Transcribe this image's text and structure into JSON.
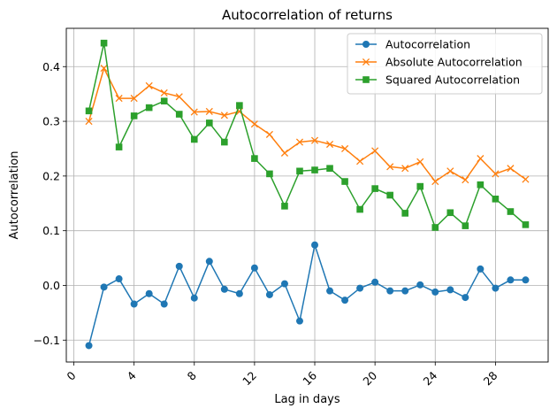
{
  "chart_data": {
    "type": "line",
    "title": "Autocorrelation of returns",
    "xlabel": "Lag in days",
    "ylabel": "Autocorrelation",
    "x": [
      1,
      2,
      3,
      4,
      5,
      6,
      7,
      8,
      9,
      10,
      11,
      12,
      13,
      14,
      15,
      16,
      17,
      18,
      19,
      20,
      21,
      22,
      23,
      24,
      25,
      26,
      27,
      28,
      29,
      30
    ],
    "xlim": [
      -0.5,
      31.5
    ],
    "ylim": [
      -0.14,
      0.47
    ],
    "xticks": [
      0,
      4,
      8,
      12,
      16,
      20,
      24,
      28
    ],
    "xtick_labels": [
      "0",
      "4",
      "8",
      "12",
      "16",
      "20",
      "24",
      "28"
    ],
    "yticks": [
      -0.1,
      0.0,
      0.1,
      0.2,
      0.3,
      0.4
    ],
    "ytick_labels": [
      "−0.1",
      "0.0",
      "0.1",
      "0.2",
      "0.3",
      "0.4"
    ],
    "grid": true,
    "legend_position": "top-right",
    "series": [
      {
        "name": "Autocorrelation",
        "color": "#1f77b4",
        "marker": "circle",
        "values": [
          -0.11,
          -0.003,
          0.012,
          -0.034,
          -0.015,
          -0.034,
          0.035,
          -0.023,
          0.044,
          -0.007,
          -0.015,
          0.032,
          -0.017,
          0.003,
          -0.065,
          0.074,
          -0.01,
          -0.027,
          -0.005,
          0.006,
          -0.01,
          -0.01,
          0.001,
          -0.012,
          -0.008,
          -0.022,
          0.03,
          -0.005,
          0.01,
          0.01
        ]
      },
      {
        "name": "Absolute Autocorrelation",
        "color": "#ff7f0e",
        "marker": "x",
        "values": [
          0.3,
          0.397,
          0.342,
          0.342,
          0.365,
          0.352,
          0.345,
          0.317,
          0.318,
          0.311,
          0.318,
          0.295,
          0.276,
          0.242,
          0.262,
          0.265,
          0.258,
          0.25,
          0.227,
          0.246,
          0.217,
          0.214,
          0.226,
          0.19,
          0.209,
          0.193,
          0.232,
          0.204,
          0.214,
          0.194
        ]
      },
      {
        "name": "Squared Autocorrelation",
        "color": "#2ca02c",
        "marker": "square",
        "values": [
          0.319,
          0.443,
          0.253,
          0.31,
          0.325,
          0.337,
          0.313,
          0.267,
          0.297,
          0.262,
          0.329,
          0.232,
          0.204,
          0.145,
          0.209,
          0.211,
          0.214,
          0.19,
          0.139,
          0.177,
          0.165,
          0.132,
          0.181,
          0.106,
          0.133,
          0.109,
          0.184,
          0.158,
          0.135,
          0.111
        ]
      }
    ]
  }
}
